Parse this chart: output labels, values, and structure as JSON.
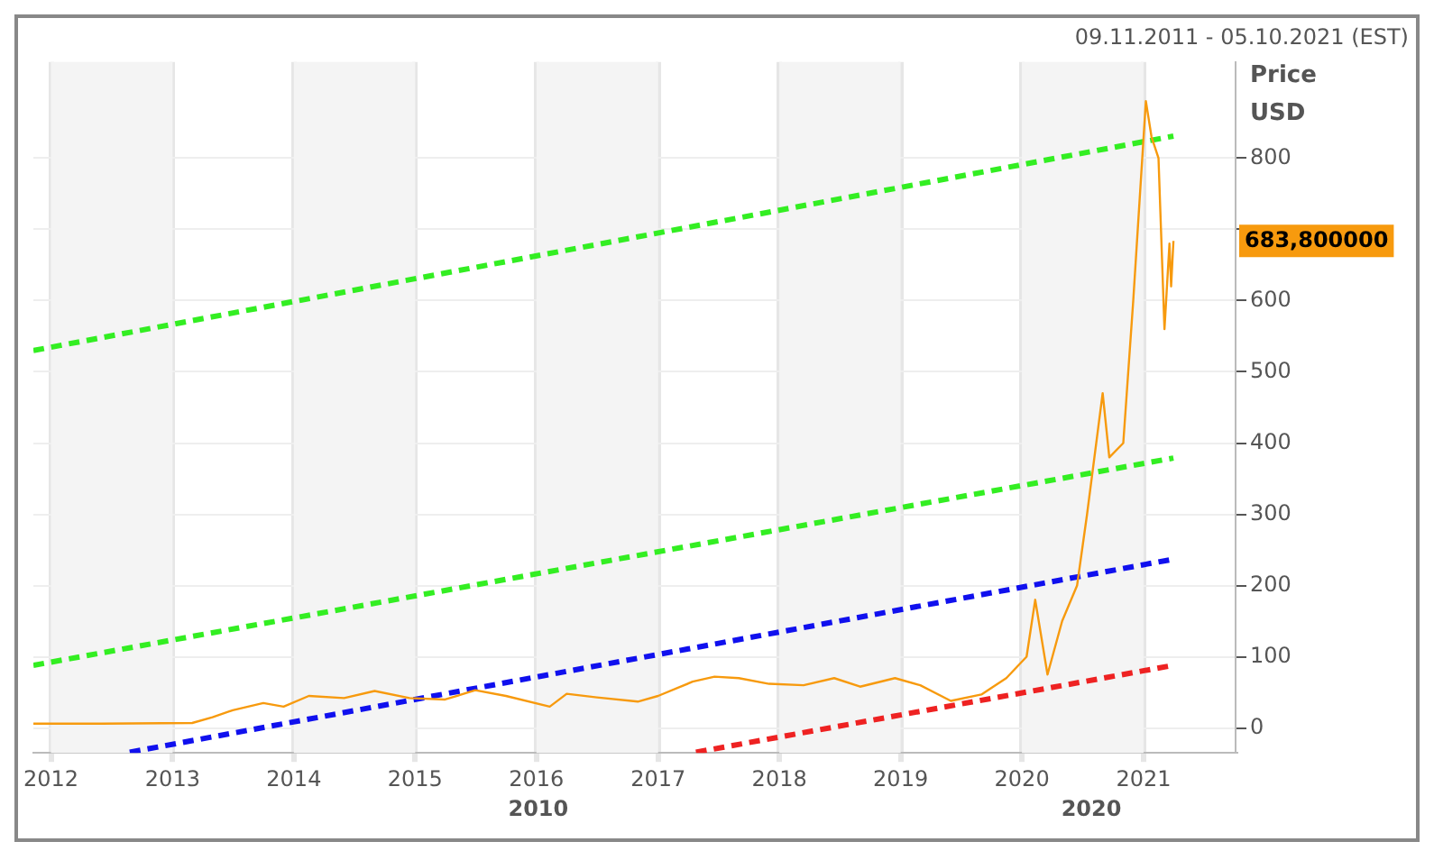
{
  "chart_data": {
    "type": "line",
    "subtitle": "09.11.2011 - 05.10.2021 (EST)",
    "ylabel": "Price USD",
    "xlim": [
      "2011-11-09",
      "2021-10-05"
    ],
    "ylim": [
      -35,
      935
    ],
    "xticks": [
      {
        "value": "2012-01-01",
        "label": "2012"
      },
      {
        "value": "2013-01-01",
        "label": "2013"
      },
      {
        "value": "2014-01-01",
        "label": "2014"
      },
      {
        "value": "2015-01-01",
        "label": "2015"
      },
      {
        "value": "2016-01-01",
        "label": "2016"
      },
      {
        "value": "2017-01-01",
        "label": "2017"
      },
      {
        "value": "2018-01-01",
        "label": "2018"
      },
      {
        "value": "2019-01-01",
        "label": "2019"
      },
      {
        "value": "2020-01-01",
        "label": "2020"
      },
      {
        "value": "2021-01-01",
        "label": "2021"
      }
    ],
    "yticks": [
      0,
      100,
      200,
      300,
      400,
      500,
      600,
      {
        "value": 700,
        "label": null
      },
      800
    ],
    "grid": true,
    "legend": false,
    "marker": "none",
    "bands": [
      {
        "axis": "x",
        "from": "2012-01-01",
        "to": "2013-01-01",
        "color": "#f4f4f4"
      },
      {
        "axis": "x",
        "from": "2014-01-01",
        "to": "2015-01-01",
        "color": "#f4f4f4"
      },
      {
        "axis": "x",
        "from": "2016-01-01",
        "to": "2017-01-01",
        "color": "#f4f4f4"
      },
      {
        "axis": "x",
        "from": "2018-01-01",
        "to": "2019-01-01",
        "color": "#f4f4f4"
      },
      {
        "axis": "x",
        "from": "2020-01-01",
        "to": "2021-01-01",
        "color": "#f4f4f4"
      }
    ],
    "annotations": [
      "683,800000",
      "2010",
      "2020"
    ],
    "series": [
      {
        "color": "#f79a0e",
        "line_style": "solid",
        "x": [
          "2011-11-09",
          "2012-06-01",
          "2013-03-01",
          "2013-05-01",
          "2013-07-01",
          "2013-10-01",
          "2013-12-01",
          "2014-02-15",
          "2014-06-01",
          "2014-09-01",
          "2014-12-15",
          "2015-04-01",
          "2015-07-01",
          "2015-10-01",
          "2016-02-10",
          "2016-04-01",
          "2016-07-01",
          "2016-11-01",
          "2017-01-01",
          "2017-04-15",
          "2017-06-20",
          "2017-09-01",
          "2017-12-01",
          "2018-03-15",
          "2018-06-15",
          "2018-09-01",
          "2018-12-15",
          "2019-03-01",
          "2019-06-01",
          "2019-09-01",
          "2019-11-15",
          "2020-01-15",
          "2020-02-10",
          "2020-03-18",
          "2020-05-01",
          "2020-06-15",
          "2020-07-15",
          "2020-08-31",
          "2020-09-20",
          "2020-11-01",
          "2020-12-01",
          "2021-01-08",
          "2021-01-25",
          "2021-02-15",
          "2021-03-05",
          "2021-03-20",
          "2021-03-25",
          "2021-04-01"
        ],
        "values": [
          6,
          6,
          7,
          15,
          25,
          35,
          30,
          45,
          42,
          52,
          42,
          40,
          53,
          45,
          30,
          48,
          43,
          37,
          45,
          65,
          72,
          70,
          62,
          60,
          70,
          58,
          70,
          60,
          38,
          47,
          70,
          100,
          180,
          75,
          150,
          200,
          300,
          470,
          380,
          400,
          600,
          880,
          830,
          800,
          560,
          680,
          620,
          683.8
        ]
      },
      {
        "color": "#33ee22",
        "line_style": "dashed",
        "x": [
          "2011-11-09",
          "2021-04-01"
        ],
        "values": [
          530,
          831
        ]
      },
      {
        "color": "#33ee22",
        "line_style": "dashed",
        "x": [
          "2011-11-09",
          "2021-04-01"
        ],
        "values": [
          88,
          379
        ]
      },
      {
        "color": "#1010ee",
        "line_style": "dashed",
        "x": [
          "2012-08-25",
          "2021-04-01"
        ],
        "values": [
          -34,
          237
        ]
      },
      {
        "color": "#ee2222",
        "line_style": "dashed",
        "x": [
          "2017-04-25",
          "2021-04-01"
        ],
        "values": [
          -34,
          88
        ]
      }
    ]
  }
}
